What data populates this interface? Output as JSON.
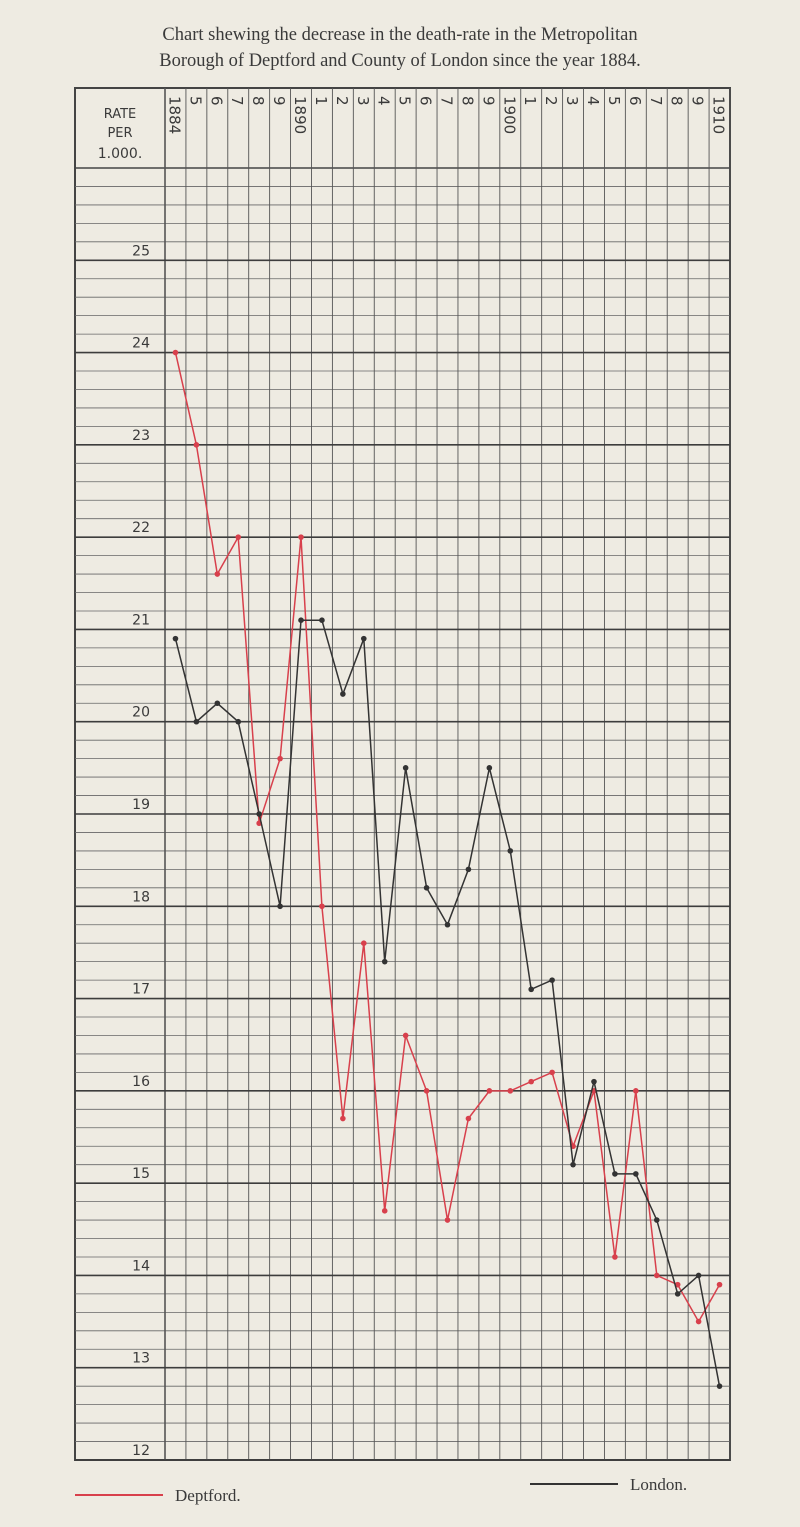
{
  "chart_data": {
    "type": "line",
    "title": [
      "Chart shewing the decrease in the death-rate in the Metropolitan",
      "Borough of Deptford and County of London since the year 1884."
    ],
    "y_label": [
      "RATE",
      "PER",
      "1.000."
    ],
    "categories": [
      "1884",
      "5",
      "6",
      "7",
      "8",
      "9",
      "1890",
      "1",
      "2",
      "3",
      "4",
      "5",
      "6",
      "7",
      "8",
      "9",
      "1900",
      "1",
      "2",
      "3",
      "4",
      "5",
      "6",
      "7",
      "8",
      "9",
      "1910"
    ],
    "series": [
      {
        "name": "Deptford.",
        "color": "#d8404c",
        "values": [
          24.0,
          23.0,
          21.6,
          22.0,
          18.9,
          19.6,
          22.0,
          18.0,
          15.7,
          17.6,
          14.7,
          16.6,
          16.0,
          14.6,
          15.7,
          16.0,
          16.0,
          16.1,
          16.2,
          15.4,
          16.0,
          14.2,
          16.0,
          14.0,
          13.9,
          13.5,
          13.9
        ]
      },
      {
        "name": "London.",
        "color": "#333333",
        "values": [
          20.9,
          20.0,
          20.2,
          20.0,
          19.0,
          18.0,
          21.1,
          21.1,
          20.3,
          20.9,
          17.4,
          19.5,
          18.2,
          17.8,
          18.4,
          19.5,
          18.6,
          17.1,
          17.2,
          15.2,
          16.1,
          15.1,
          15.1,
          14.6,
          13.8,
          14.0,
          12.8
        ]
      }
    ],
    "ylim": [
      12,
      26
    ],
    "yticks": [
      12,
      13,
      14,
      15,
      16,
      17,
      18,
      19,
      20,
      21,
      22,
      23,
      24,
      25
    ],
    "grid": true
  }
}
